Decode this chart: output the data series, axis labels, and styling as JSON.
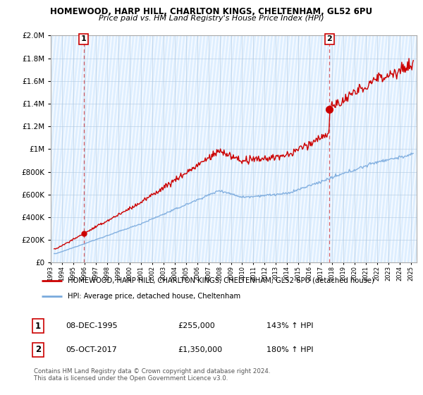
{
  "title1": "HOMEWOOD, HARP HILL, CHARLTON KINGS, CHELTENHAM, GL52 6PU",
  "title2": "Price paid vs. HM Land Registry's House Price Index (HPI)",
  "legend_line1": "HOMEWOOD, HARP HILL, CHARLTON KINGS, CHELTENHAM, GL52 6PU (detached house)",
  "legend_line2": "HPI: Average price, detached house, Cheltenham",
  "annotation1_date": "08-DEC-1995",
  "annotation1_price": "£255,000",
  "annotation1_hpi": "143% ↑ HPI",
  "annotation2_date": "05-OCT-2017",
  "annotation2_price": "£1,350,000",
  "annotation2_hpi": "180% ↑ HPI",
  "footer": "Contains HM Land Registry data © Crown copyright and database right 2024.\nThis data is licensed under the Open Government Licence v3.0.",
  "red_color": "#cc0000",
  "blue_color": "#7aaadd",
  "point1_x": 1995.92,
  "point1_y": 255000,
  "point2_x": 2017.75,
  "point2_y": 1350000,
  "ylim": [
    0,
    2000000
  ],
  "xlim_left": 1993.0,
  "xlim_right": 2025.5
}
